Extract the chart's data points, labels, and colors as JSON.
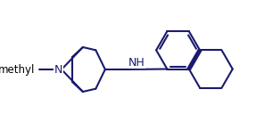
{
  "bg_color": "#ffffff",
  "line_color": "#1a1a6e",
  "line_width": 1.5,
  "fig_width": 3.06,
  "fig_height": 1.46,
  "dpi": 100,
  "xlim": [
    0,
    10
  ],
  "ylim": [
    0,
    5
  ],
  "N_label": "N",
  "NH_label": "NH",
  "methyl_label": "methyl"
}
